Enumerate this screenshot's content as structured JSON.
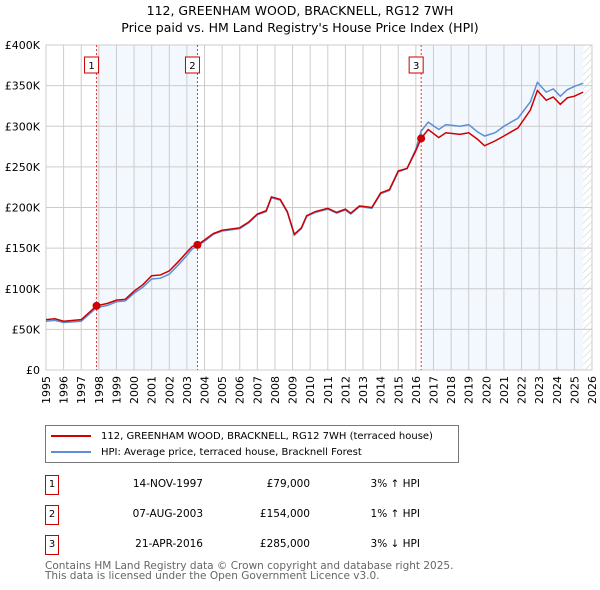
{
  "chart_data": {
    "type": "line",
    "title": "112, GREENHAM WOOD, BRACKNELL, RG12 7WH",
    "subtitle": "Price paid vs. HM Land Registry's House Price Index (HPI)",
    "xlim": [
      1995,
      2026
    ],
    "ylim": [
      0,
      400000
    ],
    "y_ticks": [
      0,
      50000,
      100000,
      150000,
      200000,
      250000,
      300000,
      350000,
      400000
    ],
    "y_tick_labels": [
      "£0",
      "£50K",
      "£100K",
      "£150K",
      "£200K",
      "£250K",
      "£300K",
      "£350K",
      "£400K"
    ],
    "x_ticks": [
      "1995",
      "1996",
      "1997",
      "1998",
      "1999",
      "2000",
      "2001",
      "2002",
      "2003",
      "2004",
      "2005",
      "2006",
      "2007",
      "2008",
      "2009",
      "2010",
      "2011",
      "2012",
      "2013",
      "2014",
      "2015",
      "2016",
      "2017",
      "2018",
      "2019",
      "2020",
      "2021",
      "2022",
      "2023",
      "2024",
      "2025",
      "2026"
    ],
    "grid": true,
    "data_end": 2025.5,
    "series": [
      {
        "name": "112, GREENHAM WOOD, BRACKNELL, RG12 7WH (terraced house)",
        "color": "#cc0000",
        "x": [
          1995,
          1995.5,
          1996,
          1997,
          1997.87,
          1998.5,
          1999,
          1999.5,
          2000,
          2000.5,
          2001,
          2001.5,
          2002,
          2002.5,
          2003,
          2003.3,
          2003.6,
          2004,
          2004.5,
          2005,
          2006,
          2006.5,
          2007,
          2007.5,
          2007.8,
          2008.3,
          2008.7,
          2009.1,
          2009.5,
          2009.8,
          2010.3,
          2011,
          2011.5,
          2012,
          2012.3,
          2012.8,
          2013.5,
          2014,
          2014.5,
          2015,
          2015.5,
          2016,
          2016.3,
          2016.7,
          2017.3,
          2017.7,
          2018.5,
          2019,
          2019.5,
          2019.9,
          2020.5,
          2021,
          2021.8,
          2022.5,
          2022.9,
          2023.4,
          2023.8,
          2024.2,
          2024.6,
          2025,
          2025.5
        ],
        "y": [
          62000,
          63000,
          60000,
          62000,
          79000,
          82000,
          86000,
          87000,
          97000,
          105000,
          116000,
          117000,
          122000,
          133000,
          145000,
          152000,
          154000,
          160000,
          168000,
          172000,
          175000,
          182000,
          192000,
          196000,
          213000,
          210000,
          195000,
          167000,
          175000,
          190000,
          195000,
          199000,
          194000,
          198000,
          193000,
          202000,
          200000,
          218000,
          222000,
          245000,
          248000,
          270000,
          285000,
          296000,
          286000,
          292000,
          290000,
          292000,
          284000,
          276000,
          282000,
          288000,
          298000,
          320000,
          344000,
          332000,
          336000,
          327000,
          335000,
          337000,
          342000
        ]
      },
      {
        "name": "HPI: Average price, terraced house, Bracknell Forest",
        "color": "#5b8fd6",
        "x": [
          1995,
          1995.5,
          1996,
          1997,
          1997.87,
          1998.5,
          1999,
          1999.5,
          2000,
          2000.5,
          2001,
          2001.5,
          2002,
          2002.5,
          2003,
          2003.3,
          2003.6,
          2004,
          2004.5,
          2005,
          2006,
          2006.5,
          2007,
          2007.5,
          2007.8,
          2008.3,
          2008.7,
          2009.1,
          2009.5,
          2009.8,
          2010.3,
          2011,
          2011.5,
          2012,
          2012.3,
          2012.8,
          2013.5,
          2014,
          2014.5,
          2015,
          2015.5,
          2016,
          2016.3,
          2016.7,
          2017.3,
          2017.7,
          2018.5,
          2019,
          2019.5,
          2019.9,
          2020.5,
          2021,
          2021.8,
          2022.5,
          2022.9,
          2023.4,
          2023.8,
          2024.2,
          2024.6,
          2025,
          2025.5
        ],
        "y": [
          60000,
          61000,
          58500,
          60000,
          76700,
          79500,
          84000,
          85000,
          94500,
          102000,
          112000,
          113000,
          118000,
          129000,
          141000,
          149000,
          152500,
          158500,
          167000,
          171000,
          174000,
          181000,
          191000,
          195000,
          212000,
          209000,
          194000,
          166000,
          174000,
          189000,
          194000,
          198000,
          193000,
          197000,
          192000,
          201000,
          199000,
          217000,
          221000,
          244000,
          248000,
          272000,
          294000,
          305000,
          296000,
          302000,
          300000,
          302000,
          293000,
          288000,
          292000,
          300000,
          310000,
          330000,
          354000,
          342000,
          346000,
          337000,
          345000,
          349000,
          353000
        ]
      }
    ],
    "sales": [
      {
        "num": "1",
        "x": 1997.87,
        "date": "14-NOV-1997",
        "price": "£79,000",
        "price_value": 79000,
        "hpi": "3% ↑ HPI"
      },
      {
        "num": "2",
        "x": 2003.6,
        "date": "07-AUG-2003",
        "price": "£154,000",
        "price_value": 154000,
        "hpi": "1% ↑ HPI"
      },
      {
        "num": "3",
        "x": 2016.3,
        "date": "21-APR-2016",
        "price": "£285,000",
        "price_value": 285000,
        "hpi": "3% ↓ HPI"
      }
    ]
  },
  "footer": {
    "line1": "Contains HM Land Registry data © Crown copyright and database right 2025.",
    "line2": "This data is licensed under the Open Government Licence v3.0."
  }
}
